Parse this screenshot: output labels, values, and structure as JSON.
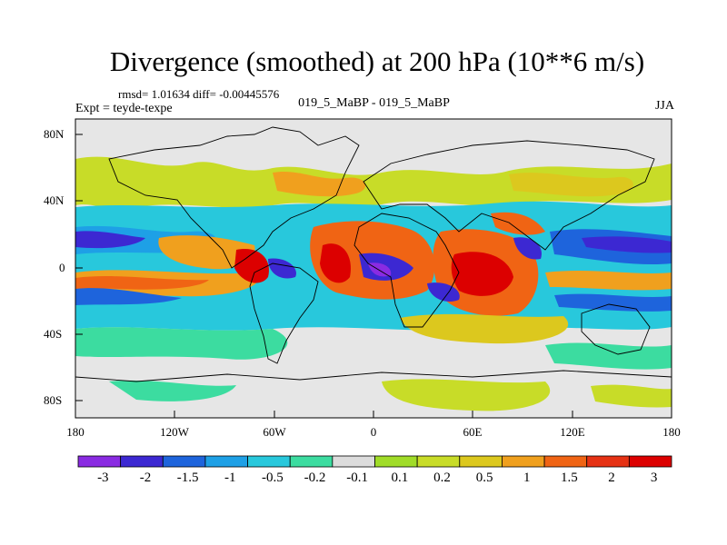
{
  "title": "Divergence (smoothed) at 200 hPa (10**6 m/s)",
  "stats": "rmsd= 1.01634 diff= -0.00445576",
  "experiment": "Expt = teyde-texpe",
  "run_label": "019_5_MaBP - 019_5_MaBP",
  "season": "JJA",
  "lat_labels": [
    "80N",
    "40N",
    "0",
    "40S",
    "80S"
  ],
  "lon_labels": [
    "180",
    "120W",
    "60W",
    "0",
    "60E",
    "120E",
    "180"
  ],
  "colorbar": {
    "labels": [
      "-3",
      "-2",
      "-1.5",
      "-1",
      "-0.5",
      "-0.2",
      "-0.1",
      "0.1",
      "0.2",
      "0.5",
      "1",
      "1.5",
      "2",
      "3"
    ],
    "colors": [
      "#8a2be2",
      "#3c28d2",
      "#1e64dc",
      "#1ea0e6",
      "#28c8dc",
      "#3cdca0",
      "#dcdcdc",
      "#a0dc28",
      "#c8dc28",
      "#dcc81e",
      "#f0a01e",
      "#f06414",
      "#e63214",
      "#dc0000"
    ]
  },
  "map_colors": {
    "background": "#e6e6e6",
    "coastline": "#000000"
  }
}
